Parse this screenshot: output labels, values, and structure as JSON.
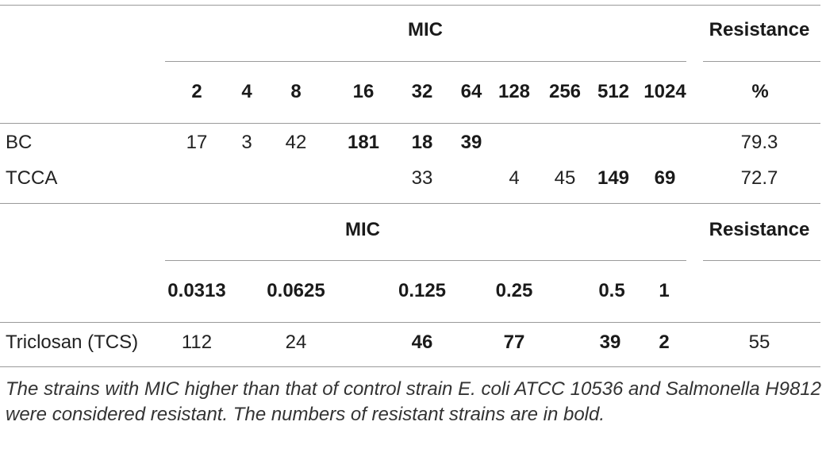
{
  "table1": {
    "group_header": "MIC",
    "resistance_header": "Resistance",
    "columns": [
      "2",
      "4",
      "8",
      "16",
      "32",
      "64",
      "128",
      "256",
      "512",
      "1024"
    ],
    "unit_header": "%",
    "rows": [
      {
        "label": "BC",
        "cells": [
          "17",
          "3",
          "42",
          "181",
          "18",
          "39",
          "",
          "",
          "",
          ""
        ],
        "resistance": "79.3"
      },
      {
        "label": "TCCA",
        "cells": [
          "",
          "",
          "",
          "",
          "33",
          "",
          "4",
          "45",
          "149",
          "69"
        ],
        "resistance": "72.7"
      }
    ]
  },
  "table2": {
    "group_header": "MIC",
    "resistance_header": "Resistance",
    "columns": [
      "0.0313",
      "0.0625",
      "0.125",
      "0.25",
      "0.5",
      "1"
    ],
    "rows": [
      {
        "label": "Triclosan (TCS)",
        "cells": [
          "112",
          "24",
          "46",
          "77",
          "39",
          "2"
        ],
        "resistance": "55"
      }
    ]
  },
  "footnote": "The strains with MIC higher than that of control strain E. coli ATCC 10536 and Salmonella H9812 were considered resistant. The numbers of resistant strains are in bold."
}
